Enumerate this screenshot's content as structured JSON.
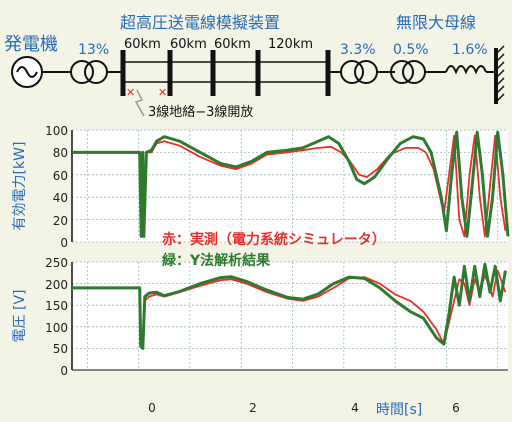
{
  "diagram": {
    "generator_label": "発電機",
    "transformer1_pct": "13%",
    "line_title": "超高圧送電線模擬装置",
    "segments": [
      "60km",
      "60km",
      "60km",
      "120km"
    ],
    "transformer2_pct": "3.3%",
    "transformer3_pct": "0.5%",
    "reactor_pct": "1.6%",
    "bus_label": "無限大母線",
    "fault_label": "3線地絡−3線開放"
  },
  "legend": {
    "measured": "赤：実測（電力系統シミュレータ）",
    "analysis": "緑：Y法解析結果"
  },
  "colors": {
    "measured": "#e8302a",
    "analysis": "#2f7a2f",
    "label_blue": "#2a6bb5",
    "background": "#f3f4e6",
    "plot_bg": "#ffffff"
  },
  "chart_data": [
    {
      "type": "line",
      "ylabel": "有効電力[kW]",
      "ylim": [
        0,
        100
      ],
      "yticks": [
        "100",
        "80",
        "60",
        "40",
        "20",
        "0"
      ],
      "xlim": [
        -1.3,
        7.2
      ],
      "grid": true,
      "series": [
        {
          "name": "赤：実測（電力系統シミュレータ）",
          "color": "#e8302a",
          "points": [
            [
              -1.3,
              80
            ],
            [
              0,
              80
            ],
            [
              0.02,
              80
            ],
            [
              0.05,
              10
            ],
            [
              0.1,
              10
            ],
            [
              0.15,
              80
            ],
            [
              0.25,
              80
            ],
            [
              0.35,
              88
            ],
            [
              0.5,
              90
            ],
            [
              0.8,
              86
            ],
            [
              1.2,
              76
            ],
            [
              1.6,
              68
            ],
            [
              1.9,
              65
            ],
            [
              2.2,
              70
            ],
            [
              2.5,
              78
            ],
            [
              2.9,
              80
            ],
            [
              3.2,
              82
            ],
            [
              3.5,
              84
            ],
            [
              3.75,
              85
            ],
            [
              3.95,
              80
            ],
            [
              4.15,
              70
            ],
            [
              4.3,
              60
            ],
            [
              4.45,
              58
            ],
            [
              4.65,
              65
            ],
            [
              4.9,
              78
            ],
            [
              5.2,
              84
            ],
            [
              5.45,
              84
            ],
            [
              5.6,
              80
            ],
            [
              5.75,
              65
            ],
            [
              5.85,
              45
            ],
            [
              5.95,
              25
            ],
            [
              6.05,
              60
            ],
            [
              6.15,
              95
            ],
            [
              6.25,
              20
            ],
            [
              6.35,
              5
            ],
            [
              6.45,
              60
            ],
            [
              6.55,
              95
            ],
            [
              6.65,
              40
            ],
            [
              6.75,
              5
            ],
            [
              6.85,
              50
            ],
            [
              6.95,
              95
            ],
            [
              7.05,
              40
            ],
            [
              7.15,
              10
            ]
          ]
        },
        {
          "name": "緑：Y法解析結果",
          "color": "#2f7a2f",
          "points": [
            [
              -1.3,
              80
            ],
            [
              0,
              80
            ],
            [
              0.02,
              80
            ],
            [
              0.05,
              5
            ],
            [
              0.08,
              80
            ],
            [
              0.1,
              5
            ],
            [
              0.15,
              80
            ],
            [
              0.25,
              82
            ],
            [
              0.35,
              90
            ],
            [
              0.5,
              94
            ],
            [
              0.8,
              90
            ],
            [
              1.2,
              80
            ],
            [
              1.6,
              70
            ],
            [
              1.9,
              67
            ],
            [
              2.2,
              72
            ],
            [
              2.5,
              80
            ],
            [
              2.9,
              82
            ],
            [
              3.2,
              84
            ],
            [
              3.5,
              90
            ],
            [
              3.7,
              94
            ],
            [
              3.9,
              88
            ],
            [
              4.1,
              72
            ],
            [
              4.25,
              56
            ],
            [
              4.4,
              52
            ],
            [
              4.6,
              58
            ],
            [
              4.85,
              74
            ],
            [
              5.1,
              88
            ],
            [
              5.35,
              94
            ],
            [
              5.55,
              92
            ],
            [
              5.7,
              80
            ],
            [
              5.8,
              60
            ],
            [
              5.9,
              40
            ],
            [
              6.0,
              10
            ],
            [
              6.1,
              60
            ],
            [
              6.2,
              98
            ],
            [
              6.3,
              40
            ],
            [
              6.4,
              5
            ],
            [
              6.5,
              50
            ],
            [
              6.6,
              98
            ],
            [
              6.7,
              60
            ],
            [
              6.8,
              5
            ],
            [
              6.9,
              40
            ],
            [
              7.0,
              98
            ],
            [
              7.1,
              60
            ],
            [
              7.2,
              5
            ]
          ]
        }
      ]
    },
    {
      "type": "line",
      "ylabel": "電圧 [V]",
      "ylim": [
        0,
        250
      ],
      "yticks": [
        "250",
        "200",
        "150",
        "100",
        "50",
        "0"
      ],
      "xlim": [
        -1.3,
        7.2
      ],
      "xticks": [
        "0",
        "2",
        "4",
        "6"
      ],
      "xlabel": "時間[s]",
      "grid": true,
      "series": [
        {
          "name": "赤：実測（電力系統シミュレータ）",
          "color": "#e8302a",
          "points": [
            [
              -1.3,
              190
            ],
            [
              0,
              190
            ],
            [
              0.02,
              190
            ],
            [
              0.04,
              70
            ],
            [
              0.08,
              60
            ],
            [
              0.12,
              160
            ],
            [
              0.2,
              170
            ],
            [
              0.35,
              175
            ],
            [
              0.5,
              170
            ],
            [
              0.8,
              180
            ],
            [
              1.2,
              195
            ],
            [
              1.6,
              208
            ],
            [
              1.8,
              210
            ],
            [
              2.1,
              200
            ],
            [
              2.5,
              180
            ],
            [
              2.9,
              165
            ],
            [
              3.2,
              160
            ],
            [
              3.5,
              170
            ],
            [
              3.8,
              190
            ],
            [
              4.1,
              212
            ],
            [
              4.4,
              215
            ],
            [
              4.7,
              200
            ],
            [
              5.0,
              175
            ],
            [
              5.3,
              160
            ],
            [
              5.55,
              135
            ],
            [
              5.8,
              95
            ],
            [
              5.95,
              60
            ],
            [
              6.05,
              110
            ],
            [
              6.15,
              160
            ],
            [
              6.25,
              210
            ],
            [
              6.35,
              200
            ],
            [
              6.45,
              150
            ],
            [
              6.55,
              210
            ],
            [
              6.65,
              180
            ],
            [
              6.75,
              220
            ],
            [
              6.9,
              170
            ],
            [
              7.0,
              230
            ],
            [
              7.15,
              180
            ]
          ]
        },
        {
          "name": "緑：Y法解析結果",
          "color": "#2f7a2f",
          "points": [
            [
              -1.3,
              190
            ],
            [
              0,
              190
            ],
            [
              0.02,
              190
            ],
            [
              0.04,
              55
            ],
            [
              0.08,
              50
            ],
            [
              0.12,
              170
            ],
            [
              0.2,
              178
            ],
            [
              0.35,
              180
            ],
            [
              0.5,
              172
            ],
            [
              0.8,
              182
            ],
            [
              1.2,
              200
            ],
            [
              1.6,
              214
            ],
            [
              1.8,
              216
            ],
            [
              2.1,
              205
            ],
            [
              2.5,
              185
            ],
            [
              2.9,
              168
            ],
            [
              3.2,
              164
            ],
            [
              3.5,
              176
            ],
            [
              3.8,
              200
            ],
            [
              4.1,
              215
            ],
            [
              4.4,
              212
            ],
            [
              4.7,
              190
            ],
            [
              5.0,
              160
            ],
            [
              5.3,
              135
            ],
            [
              5.55,
              120
            ],
            [
              5.8,
              75
            ],
            [
              5.95,
              60
            ],
            [
              6.05,
              130
            ],
            [
              6.15,
              215
            ],
            [
              6.25,
              150
            ],
            [
              6.35,
              240
            ],
            [
              6.45,
              160
            ],
            [
              6.55,
              240
            ],
            [
              6.65,
              170
            ],
            [
              6.75,
              245
            ],
            [
              6.85,
              180
            ],
            [
              6.95,
              240
            ],
            [
              7.05,
              160
            ],
            [
              7.15,
              230
            ]
          ]
        }
      ]
    }
  ]
}
